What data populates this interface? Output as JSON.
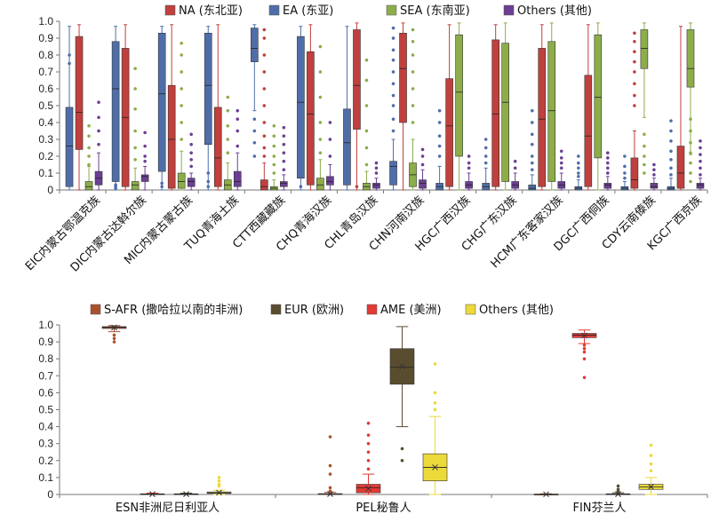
{
  "colors": {
    "NA": "#c0403e",
    "EA": "#4f6ea9",
    "SEA": "#8dad4a",
    "Others_top": "#6b3f93",
    "SAFR": "#a9512e",
    "EUR": "#5a4d2f",
    "AME": "#e23a35",
    "Others_bottom": "#ecd93a"
  },
  "chart_data": [
    {
      "type": "box",
      "legend": [
        "NA (东北亚)",
        "EA (东亚)",
        "SEA (东南亚)",
        "Others (其他)"
      ],
      "series_keys": [
        "NA",
        "EA",
        "SEA",
        "Others"
      ],
      "order": [
        "EA",
        "NA",
        "SEA",
        "Others"
      ],
      "ylim": [
        0,
        1.0
      ],
      "yticks": [
        "0",
        "0.1",
        "0.2",
        "0.3",
        "0.4",
        "0.5",
        "0.6",
        "0.7",
        "0.8",
        "0.9",
        "1.0"
      ],
      "categories": [
        "EIC内蒙古鄂温克族",
        "DIC内蒙古达斡尔族",
        "MIC内蒙古蒙古族",
        "TUQ青海土族",
        "CTT西藏藏族",
        "CHQ青海汉族",
        "CHL青岛汉族",
        "CHN河南汉族",
        "HGC广西汉族",
        "CHG广东汉族",
        "HCM广东客家汉族",
        "DGC广西侗族",
        "CDY云南傣族",
        "KGC广西京族"
      ],
      "boxes": [
        [
          [
            0.0,
            0.24,
            0.46,
            0.91,
            0.98
          ],
          [
            0.0,
            0.02,
            0.26,
            0.49,
            0.97
          ],
          [
            0.0,
            0.0,
            0.02,
            0.05,
            0.14
          ],
          [
            0.0,
            0.03,
            0.07,
            0.11,
            0.22
          ]
        ],
        [
          [
            0.0,
            0.02,
            0.43,
            0.84,
            0.98
          ],
          [
            0.0,
            0.05,
            0.6,
            0.88,
            0.97
          ],
          [
            0.0,
            0.0,
            0.03,
            0.05,
            0.13
          ],
          [
            0.0,
            0.05,
            0.08,
            0.09,
            0.14
          ]
        ],
        [
          [
            0.0,
            0.01,
            0.3,
            0.62,
            0.98
          ],
          [
            0.0,
            0.11,
            0.57,
            0.93,
            0.97
          ],
          [
            0.0,
            0.01,
            0.05,
            0.1,
            0.23
          ],
          [
            0.0,
            0.02,
            0.05,
            0.07,
            0.1
          ]
        ],
        [
          [
            0.0,
            0.02,
            0.19,
            0.49,
            0.98
          ],
          [
            0.0,
            0.27,
            0.62,
            0.93,
            0.97
          ],
          [
            0.0,
            0.0,
            0.03,
            0.06,
            0.16
          ],
          [
            0.0,
            0.02,
            0.05,
            0.11,
            0.22
          ]
        ],
        [
          [
            0.0,
            0.0,
            0.02,
            0.06,
            0.16
          ],
          [
            0.47,
            0.76,
            0.84,
            0.96,
            0.98
          ],
          [
            0.0,
            0.0,
            0.01,
            0.02,
            0.06
          ],
          [
            0.0,
            0.02,
            0.04,
            0.05,
            0.09
          ]
        ],
        [
          [
            0.0,
            0.03,
            0.45,
            0.82,
            0.98
          ],
          [
            0.0,
            0.07,
            0.52,
            0.91,
            0.97
          ],
          [
            0.0,
            0.0,
            0.03,
            0.07,
            0.18
          ],
          [
            0.0,
            0.03,
            0.05,
            0.08,
            0.15
          ]
        ],
        [
          [
            0.0,
            0.36,
            0.62,
            0.95,
            0.99
          ],
          [
            0.0,
            0.03,
            0.28,
            0.48,
            0.97
          ],
          [
            0.0,
            0.0,
            0.02,
            0.04,
            0.11
          ],
          [
            0.0,
            0.01,
            0.03,
            0.04,
            0.07
          ]
        ],
        [
          [
            0.0,
            0.4,
            0.72,
            0.93,
            0.99
          ],
          [
            0.0,
            0.03,
            0.14,
            0.17,
            0.3
          ],
          [
            0.0,
            0.02,
            0.09,
            0.16,
            0.3
          ],
          [
            0.0,
            0.01,
            0.04,
            0.06,
            0.12
          ]
        ],
        [
          [
            0.0,
            0.02,
            0.38,
            0.66,
            0.98
          ],
          [
            0.0,
            0.0,
            0.02,
            0.04,
            0.14
          ],
          [
            0.0,
            0.2,
            0.58,
            0.92,
            0.99
          ],
          [
            0.0,
            0.01,
            0.03,
            0.05,
            0.1
          ]
        ],
        [
          [
            0.0,
            0.02,
            0.45,
            0.89,
            0.98
          ],
          [
            0.0,
            0.0,
            0.02,
            0.04,
            0.13
          ],
          [
            0.0,
            0.05,
            0.52,
            0.87,
            0.99
          ],
          [
            0.0,
            0.01,
            0.03,
            0.05,
            0.1
          ]
        ],
        [
          [
            0.0,
            0.02,
            0.42,
            0.84,
            0.98
          ],
          [
            0.0,
            0.0,
            0.01,
            0.03,
            0.09
          ],
          [
            0.0,
            0.05,
            0.47,
            0.88,
            0.99
          ],
          [
            0.0,
            0.01,
            0.03,
            0.05,
            0.1
          ]
        ],
        [
          [
            0.0,
            0.02,
            0.32,
            0.68,
            0.98
          ],
          [
            0.0,
            0.0,
            0.01,
            0.02,
            0.06
          ],
          [
            0.0,
            0.19,
            0.55,
            0.92,
            0.99
          ],
          [
            0.0,
            0.01,
            0.03,
            0.04,
            0.08
          ]
        ],
        [
          [
            0.0,
            0.01,
            0.06,
            0.19,
            0.35
          ],
          [
            0.0,
            0.0,
            0.01,
            0.02,
            0.05
          ],
          [
            0.43,
            0.72,
            0.84,
            0.95,
            0.99
          ],
          [
            0.0,
            0.01,
            0.02,
            0.04,
            0.07
          ]
        ],
        [
          [
            0.0,
            0.01,
            0.1,
            0.26,
            0.97
          ],
          [
            0.0,
            0.0,
            0.01,
            0.02,
            0.07
          ],
          [
            0.21,
            0.61,
            0.72,
            0.95,
            0.99
          ],
          [
            0.0,
            0.01,
            0.03,
            0.04,
            0.07
          ]
        ]
      ],
      "outliers": [
        [
          [],
          [
            0.8,
            0.75
          ],
          [
            0.15,
            0.2,
            0.25,
            0.32,
            0.38
          ],
          [
            0.27,
            0.35,
            0.43,
            0.52
          ]
        ],
        [
          [],
          [
            0.01,
            0.02,
            0.03
          ],
          [
            0.18,
            0.25,
            0.35,
            0.48,
            0.6,
            0.72
          ],
          [
            0.17,
            0.2,
            0.26,
            0.34
          ]
        ],
        [
          [],
          [
            0.02,
            0.04
          ],
          [
            0.3,
            0.4,
            0.5,
            0.6,
            0.7,
            0.8,
            0.87
          ],
          [
            0.14,
            0.18,
            0.22,
            0.27,
            0.33
          ]
        ],
        [
          [],
          [
            0.02,
            0.05,
            0.1
          ],
          [
            0.22,
            0.3,
            0.38,
            0.47,
            0.55
          ],
          [
            0.26,
            0.35,
            0.42,
            0.47
          ]
        ],
        [
          [
            0.2,
            0.25,
            0.32,
            0.4,
            0.5,
            0.6,
            0.7,
            0.8,
            0.9,
            0.95
          ],
          [
            0.2,
            0.28,
            0.35,
            0.42
          ],
          [
            0.1,
            0.15,
            0.2,
            0.26,
            0.32,
            0.38
          ],
          [
            0.12,
            0.17,
            0.22,
            0.27,
            0.32,
            0.37
          ]
        ],
        [
          [],
          [
            0.02
          ],
          [
            0.22,
            0.3,
            0.4,
            0.55,
            0.7,
            0.85
          ],
          [
            0.2,
            0.3,
            0.4
          ]
        ],
        [
          [
            0.02
          ],
          [],
          [
            0.15,
            0.25,
            0.35,
            0.5,
            0.65,
            0.77
          ],
          [
            0.1,
            0.13,
            0.16
          ]
        ],
        [
          [],
          [
            0.35,
            0.42,
            0.5,
            0.56,
            0.63,
            0.7,
            0.77,
            0.83,
            0.9,
            0.96
          ],
          [
            0.4,
            0.5,
            0.6,
            0.7,
            0.8,
            0.88,
            0.95
          ],
          [
            0.15,
            0.2,
            0.24
          ]
        ],
        [
          [],
          [
            0.2,
            0.26,
            0.32,
            0.4,
            0.47
          ],
          [],
          [
            0.13,
            0.16,
            0.2
          ]
        ],
        [
          [],
          [
            0.16,
            0.2,
            0.25,
            0.3
          ],
          [],
          [
            0.13,
            0.17
          ]
        ],
        [
          [],
          [
            0.12,
            0.16,
            0.2,
            0.27,
            0.33,
            0.4,
            0.47
          ],
          [],
          [
            0.13,
            0.16,
            0.19,
            0.23
          ]
        ],
        [
          [],
          [
            0.08,
            0.1,
            0.13,
            0.16,
            0.2
          ],
          [],
          [
            0.1,
            0.13,
            0.16,
            0.19,
            0.22
          ]
        ],
        [
          [
            0.5,
            0.56,
            0.63,
            0.7,
            0.76,
            0.82,
            0.88,
            0.93
          ],
          [
            0.07,
            0.1,
            0.14,
            0.2
          ],
          [
            0.1,
            0.15,
            0.2,
            0.26,
            0.33
          ],
          [
            0.09,
            0.12,
            0.15
          ]
        ],
        [
          [],
          [
            0.09,
            0.13,
            0.18,
            0.23,
            0.29,
            0.35,
            0.41
          ],
          [
            0.05,
            0.1,
            0.16,
            0.22,
            0.28,
            0.35,
            0.42
          ],
          [
            0.09,
            0.13,
            0.17,
            0.21,
            0.25,
            0.29
          ]
        ]
      ]
    },
    {
      "type": "box",
      "legend": [
        "S-AFR (撒哈拉以南的非洲)",
        "EUR (欧洲)",
        "AME (美洲)",
        "Others (其他)"
      ],
      "series_keys": [
        "SAFR",
        "EUR",
        "AME",
        "Others"
      ],
      "order": [
        "SAFR",
        "AME",
        "EUR",
        "Others"
      ],
      "ylim": [
        0,
        1.0
      ],
      "yticks": [
        "0",
        "0.1",
        "0.2",
        "0.3",
        "0.4",
        "0.5",
        "0.6",
        "0.7",
        "0.8",
        "0.9",
        "1.0"
      ],
      "categories": [
        "ESN非洲尼日利亚人",
        "PEL秘鲁人",
        "FIN芬兰人"
      ],
      "boxes": [
        [
          [
            0.96,
            0.979,
            0.986,
            0.99,
            0.996
          ],
          [
            0.0,
            0.0,
            0.002,
            0.004,
            0.008
          ],
          [
            0.0,
            0.0,
            0.002,
            0.004,
            0.008
          ],
          [
            0.0,
            0.006,
            0.01,
            0.015,
            0.025
          ]
        ],
        [
          [
            0.0,
            0.0,
            0.002,
            0.005,
            0.012
          ],
          [
            0.4,
            0.65,
            0.75,
            0.86,
            0.99
          ],
          [
            0.0,
            0.01,
            0.04,
            0.06,
            0.12
          ],
          [
            0.0,
            0.08,
            0.16,
            0.24,
            0.46
          ]
        ],
        [
          [
            0.0,
            0.0,
            0.001,
            0.002,
            0.004
          ],
          [
            0.0,
            0.0,
            0.002,
            0.004,
            0.01
          ],
          [
            0.89,
            0.925,
            0.94,
            0.95,
            0.97
          ],
          [
            0.0,
            0.03,
            0.045,
            0.06,
            0.1
          ]
        ]
      ],
      "outliers": [
        [
          [
            0.9,
            0.92,
            0.94
          ],
          [],
          [],
          [
            0.05,
            0.06,
            0.08,
            0.1
          ]
        ],
        [
          [
            0.02,
            0.04,
            0.12,
            0.17,
            0.34
          ],
          [
            0.2,
            0.27
          ],
          [
            0.15,
            0.2,
            0.25,
            0.3,
            0.35,
            0.42
          ],
          [
            0.5,
            0.54,
            0.6,
            0.77
          ]
        ],
        [
          [],
          [
            0.02,
            0.03,
            0.05
          ],
          [
            0.69,
            0.8,
            0.84,
            0.86,
            0.88
          ],
          [
            0.14,
            0.18,
            0.23,
            0.29
          ]
        ]
      ]
    }
  ]
}
